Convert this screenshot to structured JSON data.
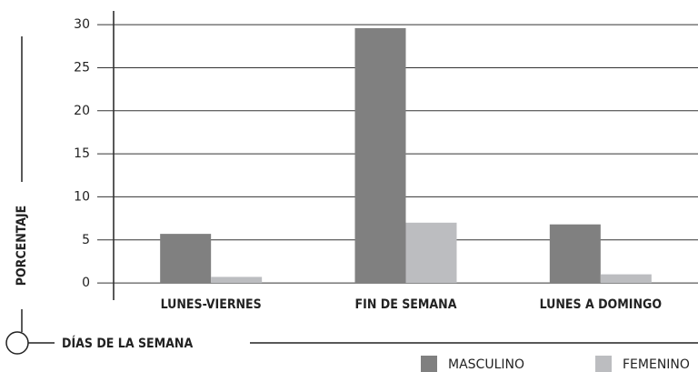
{
  "chart_data": {
    "type": "bar",
    "categories": [
      "LUNES-VIERNES",
      "FIN DE SEMANA",
      "LUNES A DOMINGO"
    ],
    "series": [
      {
        "name": "MASCULINO",
        "color": "#808080",
        "values": [
          5.7,
          29.6,
          6.8
        ]
      },
      {
        "name": "FEMENINO",
        "color": "#bcbdc0",
        "values": [
          0.7,
          7.0,
          1.0
        ]
      }
    ],
    "ylabel": "PORCENTAJE",
    "xlabel": "DÍAS DE LA SEMANA",
    "ylim": [
      -2,
      31.6
    ],
    "yticks": [
      0,
      5,
      10,
      15,
      20,
      25,
      30
    ],
    "grid": true
  }
}
